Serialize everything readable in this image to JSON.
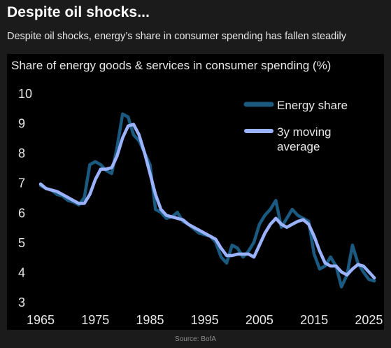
{
  "header": {
    "title": "Despite oil shocks...",
    "subtitle": "Despite oil shocks, energy’s share in consumer spending has fallen steadily"
  },
  "footer": {
    "source": "Source: BofA"
  },
  "colors": {
    "energy_share": "#1b5a80",
    "moving_average": "#9bb3ff",
    "axis_text": "#e8e8e8",
    "background": "#000000"
  },
  "chart_data": {
    "type": "line",
    "title": "Share of energy goods & services in consumer spending (%)",
    "xlim": [
      1965,
      2027
    ],
    "ylim": [
      3,
      10
    ],
    "x_ticks": [
      "1965",
      "1975",
      "1985",
      "1995",
      "2005",
      "2015",
      "2025"
    ],
    "y_ticks": [
      "10",
      "9",
      "8",
      "7",
      "6",
      "5",
      "4",
      "3"
    ],
    "legend": "top-right",
    "series": [
      {
        "name": "Energy share",
        "x": [
          1965,
          1966,
          1967,
          1968,
          1969,
          1970,
          1971,
          1972,
          1973,
          1974,
          1975,
          1976,
          1977,
          1978,
          1979,
          1980,
          1981,
          1982,
          1983,
          1984,
          1985,
          1986,
          1987,
          1988,
          1989,
          1990,
          1991,
          1992,
          1993,
          1994,
          1995,
          1996,
          1997,
          1998,
          1999,
          2000,
          2001,
          2002,
          2003,
          2004,
          2005,
          2006,
          2007,
          2008,
          2009,
          2010,
          2011,
          2012,
          2013,
          2014,
          2015,
          2016,
          2017,
          2018,
          2019,
          2020,
          2021,
          2022,
          2023,
          2024,
          2025,
          2026
        ],
        "values": [
          6.9,
          6.8,
          6.75,
          6.6,
          6.55,
          6.4,
          6.35,
          6.25,
          6.5,
          7.6,
          7.7,
          7.6,
          7.4,
          7.3,
          8.2,
          9.3,
          9.2,
          8.6,
          8.4,
          8.0,
          7.6,
          6.1,
          6.0,
          5.8,
          5.85,
          6.0,
          5.7,
          5.6,
          5.45,
          5.3,
          5.25,
          5.2,
          5.0,
          4.5,
          4.3,
          4.9,
          4.8,
          4.5,
          4.7,
          5.0,
          5.6,
          5.9,
          6.1,
          6.4,
          5.5,
          5.8,
          6.1,
          5.9,
          5.8,
          5.7,
          4.6,
          4.1,
          4.2,
          4.5,
          4.2,
          3.5,
          3.9,
          4.9,
          4.3,
          4.0,
          3.75,
          3.7
        ]
      },
      {
        "name": "3y moving\naverage",
        "x": [
          1965,
          1966,
          1967,
          1968,
          1969,
          1970,
          1971,
          1972,
          1973,
          1974,
          1975,
          1976,
          1977,
          1978,
          1979,
          1980,
          1981,
          1982,
          1983,
          1984,
          1985,
          1986,
          1987,
          1988,
          1989,
          1990,
          1991,
          1992,
          1993,
          1994,
          1995,
          1996,
          1997,
          1998,
          1999,
          2000,
          2001,
          2002,
          2003,
          2004,
          2005,
          2006,
          2007,
          2008,
          2009,
          2010,
          2011,
          2012,
          2013,
          2014,
          2015,
          2016,
          2017,
          2018,
          2019,
          2020,
          2021,
          2022,
          2023,
          2024,
          2025,
          2026
        ],
        "values": [
          6.95,
          6.8,
          6.75,
          6.7,
          6.6,
          6.5,
          6.4,
          6.3,
          6.3,
          6.6,
          7.1,
          7.45,
          7.45,
          7.5,
          7.9,
          8.5,
          8.9,
          8.95,
          8.6,
          8.0,
          7.3,
          6.6,
          6.1,
          5.9,
          5.85,
          5.8,
          5.75,
          5.6,
          5.5,
          5.4,
          5.3,
          5.2,
          5.1,
          4.8,
          4.55,
          4.55,
          4.6,
          4.6,
          4.6,
          4.5,
          4.9,
          5.3,
          5.6,
          5.8,
          5.6,
          5.5,
          5.6,
          5.7,
          5.75,
          5.6,
          5.2,
          4.7,
          4.3,
          4.2,
          4.2,
          4.0,
          3.9,
          4.1,
          4.25,
          4.2,
          4.0,
          3.8
        ]
      }
    ]
  }
}
